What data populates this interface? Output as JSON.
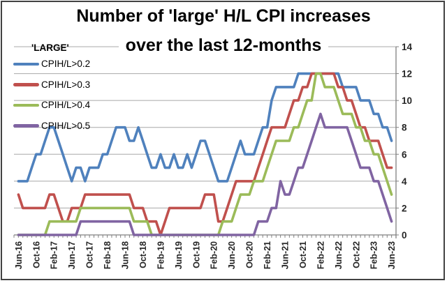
{
  "figure": {
    "title_lines": [
      "Number of 'large' H/L CPI increases",
      "over the last 12-months"
    ]
  },
  "legend": {
    "header": "'LARGE'",
    "position": "top-left-inside",
    "items": [
      {
        "label": "CPIH/L>0.2",
        "color": "#4F81BD"
      },
      {
        "label": "CPIH/L>0.3",
        "color": "#C0504D"
      },
      {
        "label": "CPIH/L>0.4",
        "color": "#9BBB59"
      },
      {
        "label": "CPIH/L>0.5",
        "color": "#8064A2"
      }
    ]
  },
  "chart_data": {
    "type": "line",
    "title": "Number of 'large' H/L CPI increases over the last 12-months",
    "xlabel": "",
    "ylabel": "",
    "ylim": [
      0,
      14
    ],
    "y_ticks": [
      0,
      2,
      4,
      6,
      8,
      10,
      12,
      14
    ],
    "y_axis_side": "right",
    "grid": true,
    "x_label_every": 4,
    "x": [
      "Jun-16",
      "Jul-16",
      "Aug-16",
      "Sep-16",
      "Oct-16",
      "Nov-16",
      "Dec-16",
      "Jan-17",
      "Feb-17",
      "Mar-17",
      "Apr-17",
      "May-17",
      "Jun-17",
      "Jul-17",
      "Aug-17",
      "Sep-17",
      "Oct-17",
      "Nov-17",
      "Dec-17",
      "Jan-18",
      "Feb-18",
      "Mar-18",
      "Apr-18",
      "May-18",
      "Jun-18",
      "Jul-18",
      "Aug-18",
      "Sep-18",
      "Oct-18",
      "Nov-18",
      "Dec-18",
      "Jan-19",
      "Feb-19",
      "Mar-19",
      "Apr-19",
      "May-19",
      "Jun-19",
      "Jul-19",
      "Aug-19",
      "Sep-19",
      "Oct-19",
      "Nov-19",
      "Dec-19",
      "Jan-20",
      "Feb-20",
      "Mar-20",
      "Apr-20",
      "May-20",
      "Jun-20",
      "Jul-20",
      "Aug-20",
      "Sep-20",
      "Oct-20",
      "Nov-20",
      "Dec-20",
      "Jan-21",
      "Feb-21",
      "Mar-21",
      "Apr-21",
      "May-21",
      "Jun-21",
      "Jul-21",
      "Aug-21",
      "Sep-21",
      "Oct-21",
      "Nov-21",
      "Dec-21",
      "Jan-22",
      "Feb-22",
      "Mar-22",
      "Apr-22",
      "May-22",
      "Jun-22",
      "Jul-22",
      "Aug-22",
      "Sep-22",
      "Oct-22",
      "Nov-22",
      "Dec-22",
      "Jan-23",
      "Feb-23",
      "Mar-23",
      "Apr-23",
      "May-23",
      "Jun-23"
    ],
    "series": [
      {
        "name": "CPIH/L>0.2",
        "color": "#4F81BD",
        "values": [
          4,
          4,
          4,
          5,
          6,
          6,
          7,
          8,
          8,
          7,
          6,
          5,
          4,
          5,
          5,
          4,
          5,
          5,
          5,
          6,
          6,
          7,
          8,
          8,
          8,
          7,
          7,
          8,
          7,
          6,
          5,
          5,
          6,
          5,
          5,
          6,
          5,
          5,
          6,
          5,
          6,
          7,
          7,
          6,
          5,
          4,
          4,
          4,
          5,
          6,
          7,
          6,
          6,
          6,
          7,
          8,
          8,
          10,
          11,
          11,
          11,
          11,
          11,
          12,
          12,
          12,
          12,
          12,
          12,
          12,
          12,
          12,
          12,
          11,
          11,
          11,
          11,
          10,
          10,
          10,
          9,
          9,
          8,
          8,
          7
        ]
      },
      {
        "name": "CPIH/L>0.3",
        "color": "#C0504D",
        "values": [
          3,
          2,
          2,
          2,
          2,
          2,
          2,
          3,
          3,
          2,
          1,
          1,
          2,
          2,
          2,
          3,
          3,
          3,
          3,
          3,
          3,
          3,
          3,
          3,
          3,
          3,
          2,
          2,
          2,
          1,
          1,
          1,
          0,
          1,
          2,
          2,
          2,
          2,
          2,
          2,
          2,
          2,
          3,
          3,
          3,
          1,
          1,
          2,
          3,
          4,
          4,
          4,
          4,
          4,
          5,
          6,
          7,
          8,
          8,
          8,
          8,
          9,
          10,
          10,
          11,
          11,
          12,
          12,
          12,
          12,
          12,
          12,
          11,
          11,
          10,
          10,
          9,
          8,
          8,
          7,
          7,
          7,
          6,
          5,
          5
        ]
      },
      {
        "name": "CPIH/L>0.4",
        "color": "#9BBB59",
        "values": [
          0,
          0,
          0,
          0,
          0,
          0,
          0,
          1,
          1,
          1,
          1,
          1,
          1,
          1,
          2,
          2,
          2,
          2,
          2,
          2,
          2,
          2,
          2,
          2,
          2,
          2,
          1,
          1,
          1,
          1,
          0,
          0,
          0,
          0,
          0,
          0,
          0,
          0,
          0,
          0,
          0,
          0,
          0,
          0,
          0,
          0,
          1,
          1,
          1,
          2,
          3,
          3,
          3,
          4,
          4,
          4,
          5,
          6,
          7,
          7,
          7,
          7,
          8,
          8,
          9,
          10,
          10,
          12,
          12,
          11,
          11,
          11,
          10,
          9,
          9,
          9,
          8,
          8,
          7,
          7,
          6,
          6,
          5,
          4,
          3
        ]
      },
      {
        "name": "CPIH/L>0.5",
        "color": "#8064A2",
        "values": [
          0,
          0,
          0,
          0,
          0,
          0,
          0,
          0,
          0,
          0,
          0,
          0,
          0,
          0,
          1,
          1,
          1,
          1,
          1,
          1,
          1,
          1,
          1,
          1,
          1,
          1,
          0,
          0,
          0,
          0,
          0,
          0,
          0,
          0,
          0,
          0,
          0,
          0,
          0,
          0,
          0,
          0,
          0,
          0,
          0,
          0,
          0,
          0,
          0,
          0,
          0,
          0,
          0,
          0,
          1,
          1,
          1,
          2,
          2,
          4,
          3,
          3,
          4,
          5,
          5,
          6,
          7,
          8,
          9,
          8,
          8,
          8,
          8,
          8,
          8,
          7,
          6,
          5,
          5,
          5,
          4,
          4,
          3,
          2,
          1
        ]
      }
    ],
    "colors": {
      "gridline": "#A8A8A8",
      "axis": "#808080",
      "tick_text": "#262626"
    }
  }
}
